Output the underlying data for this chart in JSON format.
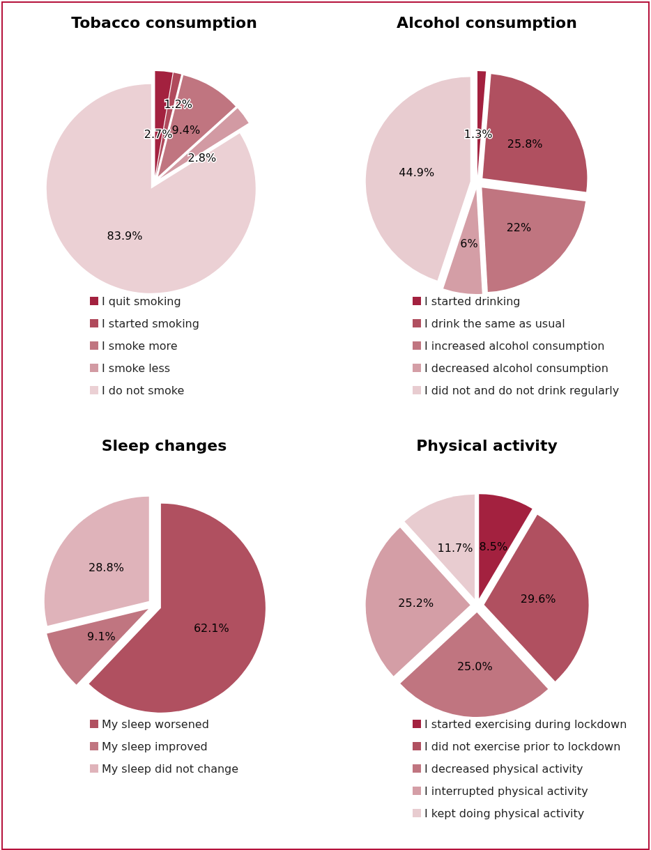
{
  "chart_data": [
    {
      "type": "pie",
      "title": "Tobacco consumption",
      "categories": [
        "I quit smoking",
        "I started smoking",
        "I smoke more",
        "I smoke less",
        "I do not smoke"
      ],
      "values": [
        2.7,
        1.2,
        9.4,
        2.8,
        83.9
      ],
      "value_labels": [
        "2.7%",
        "1.2%",
        "9.4%",
        "2.8%",
        "83.9%"
      ],
      "colors": [
        "#a3213f",
        "#b04a5c",
        "#c07580",
        "#d29aa3",
        "#ebd0d4"
      ],
      "legend": "bottom"
    },
    {
      "type": "pie",
      "title": "Alcohol consumption",
      "categories": [
        "I started drinking",
        "I drink the same as usual",
        "I increased alcohol consumption",
        "I decreased alcohol consumption",
        "I did not and do not drink regularly"
      ],
      "values": [
        1.3,
        25.8,
        22,
        6,
        44.9
      ],
      "value_labels": [
        "1.3%",
        "25.8%",
        "22%",
        "6%",
        "44.9%"
      ],
      "colors": [
        "#a3213f",
        "#b05060",
        "#c07580",
        "#d49ea6",
        "#e8ccd0"
      ],
      "legend": "bottom"
    },
    {
      "type": "pie",
      "title": "Sleep changes",
      "categories": [
        "My sleep worsened",
        "My sleep improved",
        "My sleep did not change"
      ],
      "values": [
        62.1,
        9.1,
        28.8
      ],
      "value_labels": [
        "62.1%",
        "9.1%",
        "28.8%"
      ],
      "colors": [
        "#b05060",
        "#c07580",
        "#dfb3ba"
      ],
      "legend": "bottom"
    },
    {
      "type": "pie",
      "title": "Physical activity",
      "categories": [
        "I started exercising during lockdown",
        "I did not exercise prior to lockdown",
        "I decreased physical activity",
        "I interrupted physical activity",
        "I kept doing physical activity"
      ],
      "values": [
        8.5,
        29.6,
        25.0,
        25.2,
        11.7
      ],
      "value_labels": [
        "8.5%",
        "29.6%",
        "25.0%",
        "25.2%",
        "11.7%"
      ],
      "colors": [
        "#a3213f",
        "#b05060",
        "#c07580",
        "#d49ea6",
        "#e8ccd0"
      ],
      "legend": "bottom"
    }
  ]
}
